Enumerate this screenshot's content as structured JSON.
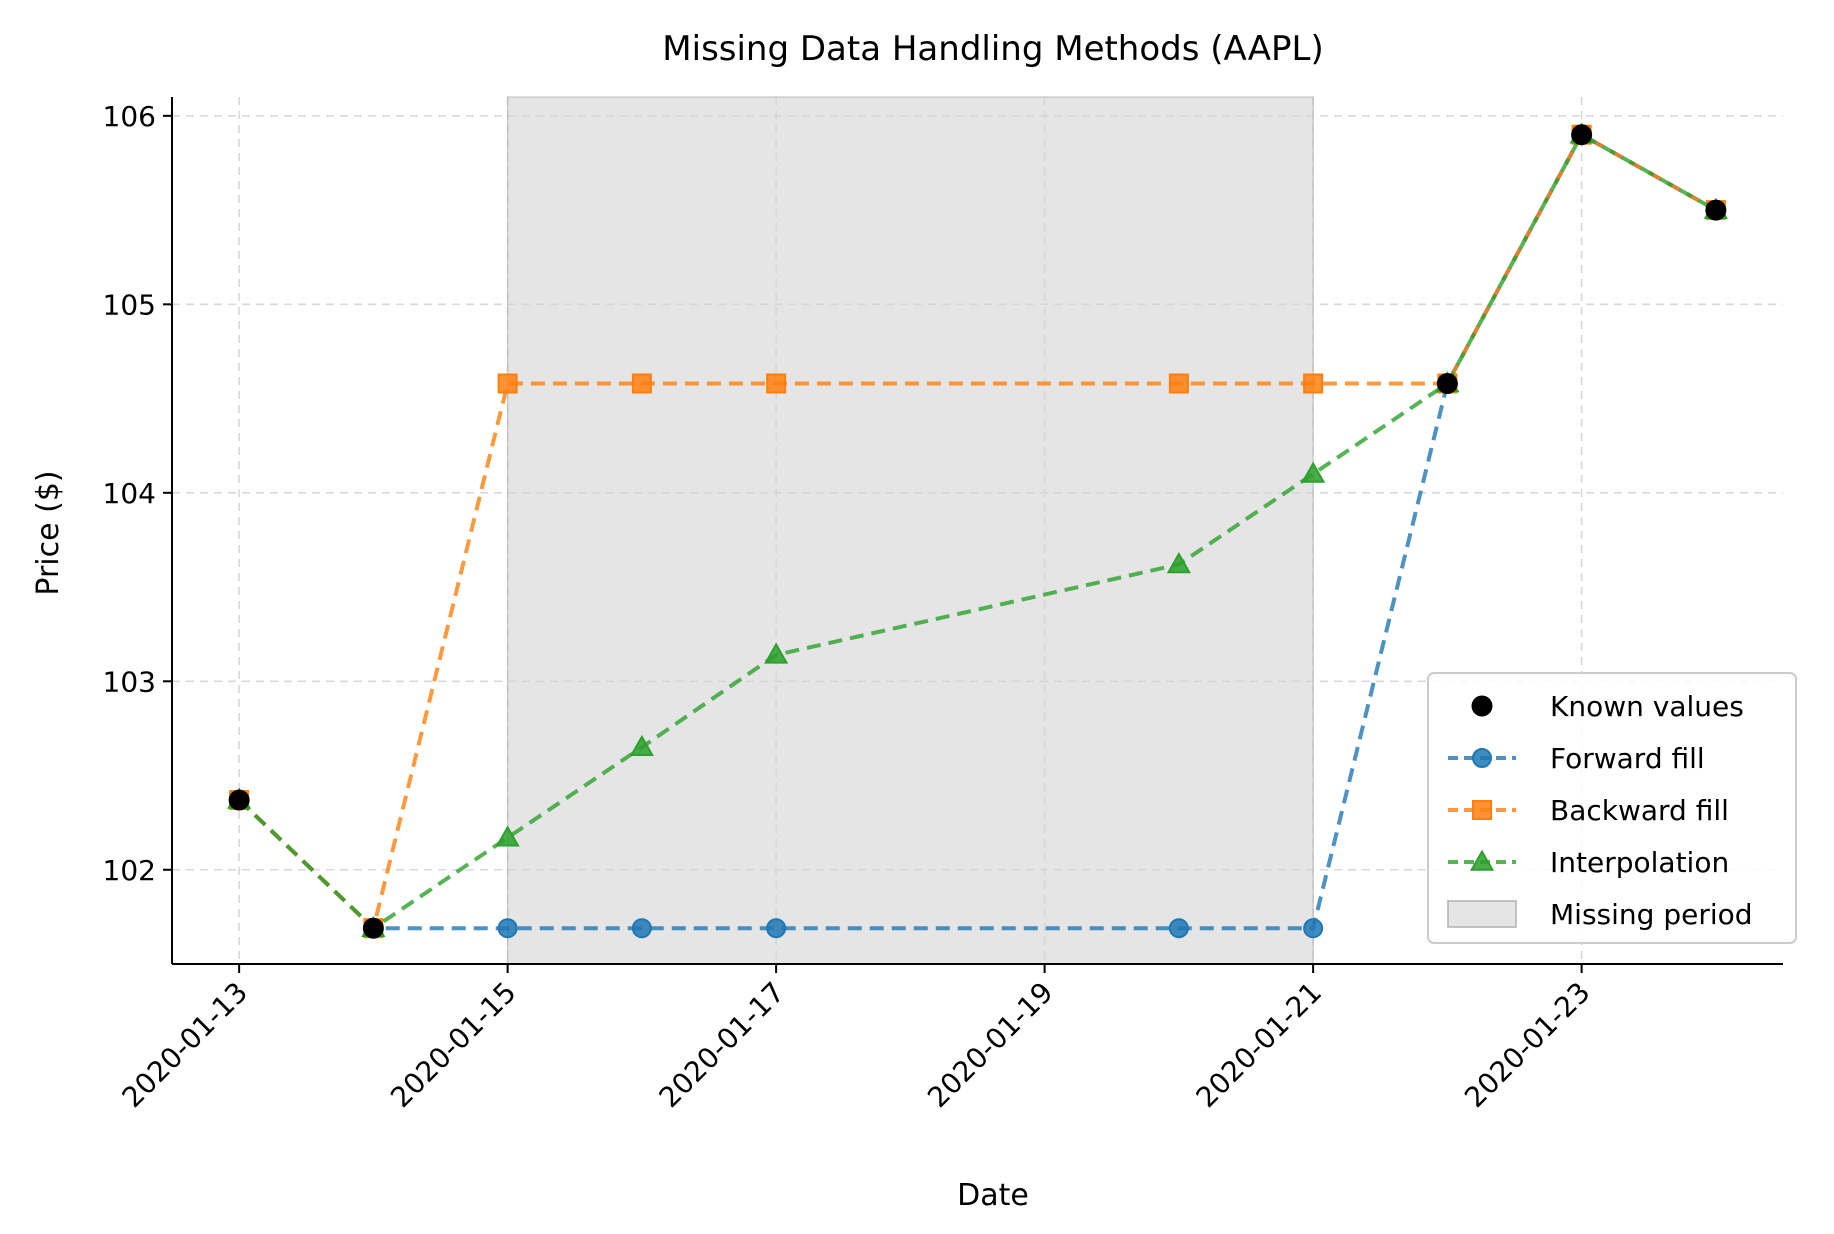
{
  "chart_data": {
    "type": "line",
    "title": "Missing Data Handling Methods (AAPL)",
    "xlabel": "Date",
    "ylabel": "Price ($)",
    "xlim": [
      "2020-01-12T12:00",
      "2020-01-24T12:00"
    ],
    "ylim": [
      101.5,
      106.1
    ],
    "x_ticks": [
      "2020-01-13",
      "2020-01-15",
      "2020-01-17",
      "2020-01-19",
      "2020-01-21",
      "2020-01-23"
    ],
    "y_ticks": [
      102,
      103,
      104,
      105,
      106
    ],
    "grid": true,
    "legend_position": "bottom-right",
    "shaded_region": {
      "name": "Missing period",
      "x_start": "2020-01-15",
      "x_end": "2020-01-21",
      "color": "#d3d3d3"
    },
    "known_values": {
      "name": "Known values",
      "color": "#000000",
      "points": [
        {
          "x": "2020-01-13",
          "y": 102.37
        },
        {
          "x": "2020-01-14",
          "y": 101.69
        },
        {
          "x": "2020-01-22",
          "y": 104.58
        },
        {
          "x": "2020-01-23",
          "y": 105.9
        },
        {
          "x": "2020-01-24",
          "y": 105.5
        }
      ]
    },
    "series": [
      {
        "name": "Forward fill",
        "color": "#1f77b4",
        "marker": "circle",
        "points": [
          {
            "x": "2020-01-13",
            "y": 102.37
          },
          {
            "x": "2020-01-14",
            "y": 101.69
          },
          {
            "x": "2020-01-15",
            "y": 101.69
          },
          {
            "x": "2020-01-16",
            "y": 101.69
          },
          {
            "x": "2020-01-17",
            "y": 101.69
          },
          {
            "x": "2020-01-20",
            "y": 101.69
          },
          {
            "x": "2020-01-21",
            "y": 101.69
          },
          {
            "x": "2020-01-22",
            "y": 104.58
          },
          {
            "x": "2020-01-23",
            "y": 105.9
          },
          {
            "x": "2020-01-24",
            "y": 105.5
          }
        ]
      },
      {
        "name": "Backward fill",
        "color": "#ff7f0e",
        "marker": "square",
        "points": [
          {
            "x": "2020-01-13",
            "y": 102.37
          },
          {
            "x": "2020-01-14",
            "y": 101.69
          },
          {
            "x": "2020-01-15",
            "y": 104.58
          },
          {
            "x": "2020-01-16",
            "y": 104.58
          },
          {
            "x": "2020-01-17",
            "y": 104.58
          },
          {
            "x": "2020-01-20",
            "y": 104.58
          },
          {
            "x": "2020-01-21",
            "y": 104.58
          },
          {
            "x": "2020-01-22",
            "y": 104.58
          },
          {
            "x": "2020-01-23",
            "y": 105.9
          },
          {
            "x": "2020-01-24",
            "y": 105.5
          }
        ]
      },
      {
        "name": "Interpolation",
        "color": "#2ca02c",
        "marker": "triangle",
        "points": [
          {
            "x": "2020-01-13",
            "y": 102.37
          },
          {
            "x": "2020-01-14",
            "y": 101.69
          },
          {
            "x": "2020-01-15",
            "y": 102.17
          },
          {
            "x": "2020-01-16",
            "y": 102.65
          },
          {
            "x": "2020-01-17",
            "y": 103.14
          },
          {
            "x": "2020-01-20",
            "y": 103.62
          },
          {
            "x": "2020-01-21",
            "y": 104.1
          },
          {
            "x": "2020-01-22",
            "y": 104.58
          },
          {
            "x": "2020-01-23",
            "y": 105.9
          },
          {
            "x": "2020-01-24",
            "y": 105.5
          }
        ]
      }
    ]
  }
}
